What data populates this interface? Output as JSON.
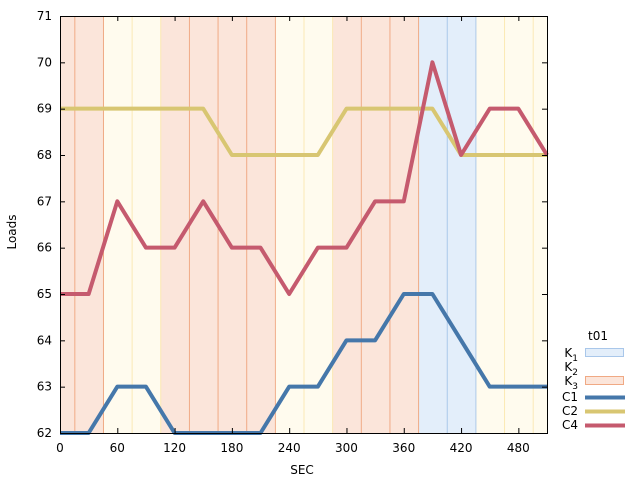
{
  "chart_data": {
    "type": "line",
    "title": "",
    "xlabel": "SEC",
    "ylabel": "Loads",
    "xlim": [
      0,
      510
    ],
    "ylim": [
      62,
      71
    ],
    "x_ticks": [
      0,
      60,
      120,
      180,
      240,
      300,
      360,
      420,
      480
    ],
    "y_ticks": [
      62,
      63,
      64,
      65,
      66,
      67,
      68,
      69,
      70,
      71
    ],
    "grid": false,
    "x": [
      0,
      30,
      60,
      90,
      120,
      150,
      180,
      210,
      240,
      270,
      300,
      330,
      360,
      390,
      420,
      450,
      480,
      510
    ],
    "series": [
      {
        "name": "C1",
        "color": "#4577aa",
        "values": [
          62,
          62,
          63,
          63,
          62,
          62,
          62,
          62,
          63,
          63,
          64,
          64,
          65,
          65,
          64,
          63,
          63,
          63
        ]
      },
      {
        "name": "C2",
        "color": "#d8c672",
        "values": [
          69,
          69,
          69,
          69,
          69,
          69,
          68,
          68,
          68,
          68,
          69,
          69,
          69,
          69,
          68,
          68,
          68,
          68
        ]
      },
      {
        "name": "C4",
        "color": "#c55a6e",
        "values": [
          65,
          65,
          67,
          66,
          66,
          67,
          66,
          66,
          65,
          66,
          66,
          67,
          67,
          70,
          68,
          69,
          69,
          68
        ]
      }
    ],
    "background_bands": [
      {
        "state": "K3",
        "start": 0,
        "end": 15
      },
      {
        "state": "K3",
        "start": 15,
        "end": 45
      },
      {
        "state": "K2",
        "start": 45,
        "end": 75
      },
      {
        "state": "K2",
        "start": 75,
        "end": 105
      },
      {
        "state": "K3",
        "start": 105,
        "end": 135
      },
      {
        "state": "K3",
        "start": 135,
        "end": 165
      },
      {
        "state": "K3",
        "start": 165,
        "end": 195
      },
      {
        "state": "K3",
        "start": 195,
        "end": 225
      },
      {
        "state": "K2",
        "start": 225,
        "end": 255
      },
      {
        "state": "K2",
        "start": 255,
        "end": 285
      },
      {
        "state": "K3",
        "start": 285,
        "end": 315
      },
      {
        "state": "K3",
        "start": 315,
        "end": 345
      },
      {
        "state": "K3",
        "start": 345,
        "end": 375
      },
      {
        "state": "K1",
        "start": 375,
        "end": 405
      },
      {
        "state": "K1",
        "start": 405,
        "end": 435
      },
      {
        "state": "K2",
        "start": 435,
        "end": 465
      },
      {
        "state": "K2",
        "start": 465,
        "end": 495
      },
      {
        "state": "K2",
        "start": 495,
        "end": 510
      }
    ],
    "band_styles": {
      "K1": {
        "fill": "#e3eefa",
        "stroke": "#a9c7ea"
      },
      "K2": {
        "fill": "#fffbee",
        "stroke": "#fbe9b5"
      },
      "K3": {
        "fill": "#fbe5da",
        "stroke": "#f0a984"
      }
    },
    "legend": {
      "position": "right",
      "title": "t01",
      "states": [
        {
          "main": "K",
          "sub": "1",
          "key": "K1"
        },
        {
          "main": "K",
          "sub": "2",
          "key": "K2"
        },
        {
          "main": "K",
          "sub": "3",
          "key": "K3"
        }
      ],
      "series": [
        "C1",
        "C2",
        "C4"
      ]
    }
  }
}
